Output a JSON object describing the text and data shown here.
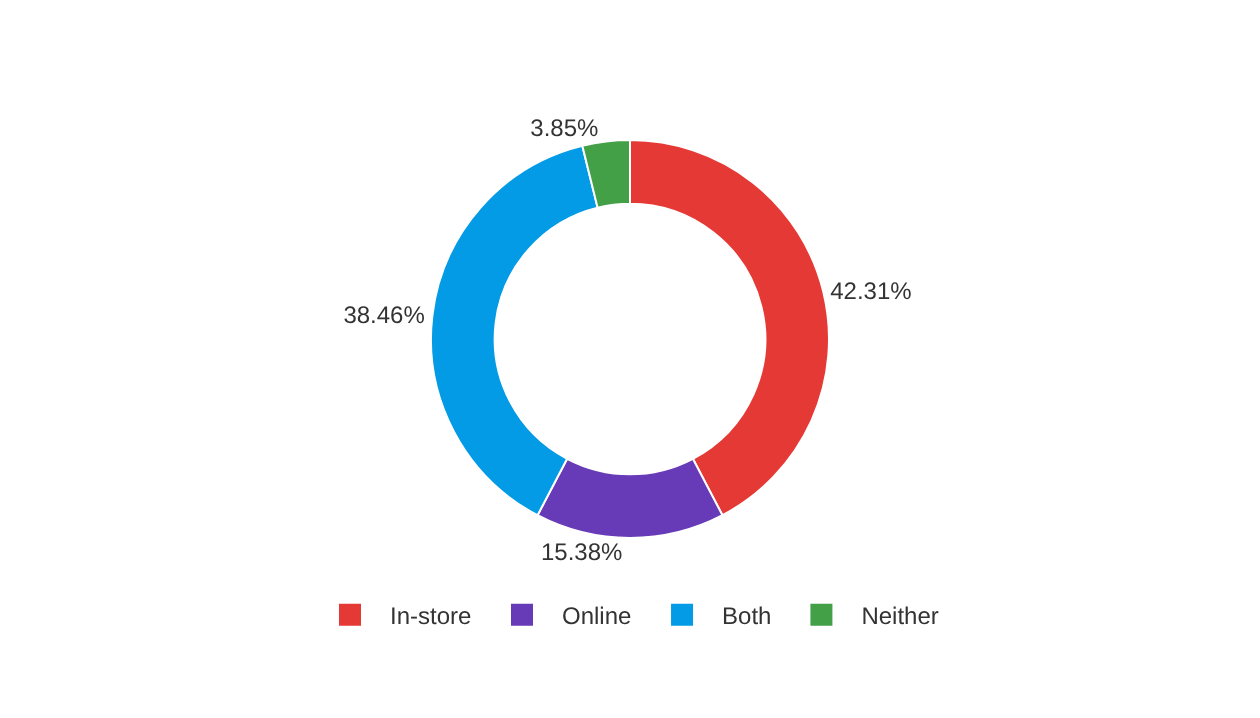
{
  "chart_data": {
    "type": "donut",
    "categories": [
      "In-store",
      "Online",
      "Both",
      "Neither"
    ],
    "values": [
      42.31,
      15.38,
      38.46,
      3.85
    ],
    "value_labels": [
      "42.31%",
      "15.38%",
      "38.46%",
      "3.85%"
    ],
    "colors": [
      "#e53935",
      "#673ab7",
      "#039be5",
      "#43a047"
    ],
    "legend": "bottom"
  }
}
